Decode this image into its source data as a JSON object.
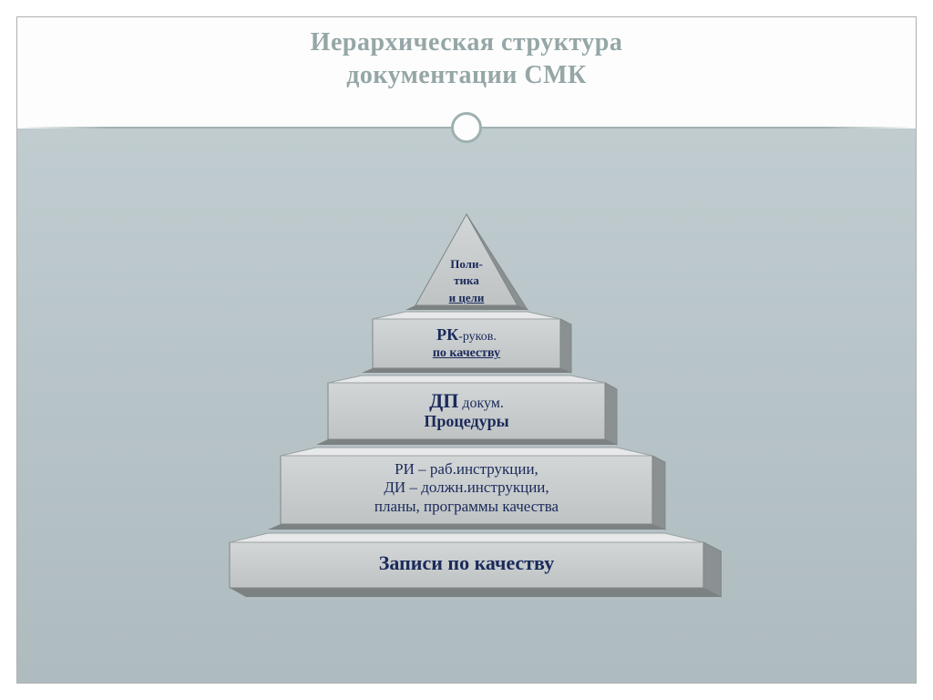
{
  "title": {
    "line1": "Иерархическая структура",
    "line2": "документации СМК",
    "color": "#95a6a6",
    "fontsize": 28
  },
  "divider": {
    "line_color": "#9fb0b0",
    "circle_border": "#9fb0b0",
    "circle_fill": "#fdfdfd"
  },
  "background": {
    "page": "#ffffff",
    "frame_border": "#b0b0b0",
    "content_top": "#c0cccf",
    "content_bottom": "#aebbbf"
  },
  "pyramid": {
    "type": "infographic",
    "face_fill": "#c9cccd",
    "face_stroke": "#7f8687",
    "side_fill": "#7c8182",
    "top_fill": "#e6e8e9",
    "text_color": "#1a2a5a",
    "levels": [
      {
        "id": "level1",
        "lines": [
          "Поли-",
          "тика",
          "и цели"
        ],
        "font_sizes": [
          13,
          13,
          13
        ],
        "bold": [
          true,
          true,
          true
        ],
        "underline_last": true
      },
      {
        "id": "level2",
        "html": "<span class='lbl-big' style='font-size:18px'>РК</span><span style='font-size:14px'>-руков.</span><br><span class='lbl-big' style='font-size:14px;text-decoration:underline'>по качеству</span>"
      },
      {
        "id": "level3",
        "html": "<span class='lbl-big' style='font-size:22px'>ДП</span> <span style='font-size:16px'>докум.</span><br><span class='lbl-big' style='font-size:18px'>Процедуры</span>"
      },
      {
        "id": "level4",
        "html": "<span style='font-size:17px'>РИ – раб.инструкции,</span><br><span style='font-size:17px'>ДИ – должн.инструкции,</span><br><span style='font-size:17px'>планы, программы качества</span>"
      },
      {
        "id": "level5",
        "html": "<span class='lbl-big' style='font-size:22px'>Записи по качеству</span>"
      }
    ]
  }
}
